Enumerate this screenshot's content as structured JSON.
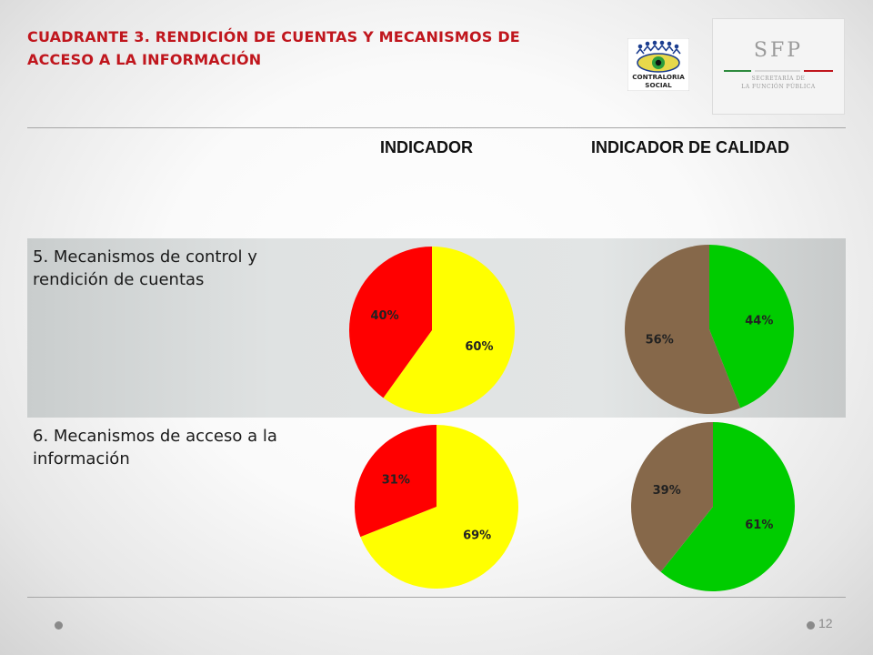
{
  "title": "CUADRANTE 3. RENDICIÓN DE CUENTAS Y MECANISMOS DE ACCESO A LA INFORMACIÓN",
  "logos": {
    "contraloria_line1": "CONTRALORIA",
    "contraloria_line2": "SOCIAL",
    "sfp_name": "SFP",
    "sfp_sub1": "SECRETARÍA DE",
    "sfp_sub2": "LA FUNCIÓN PÚBLICA"
  },
  "table": {
    "headers": [
      "INDICADOR",
      "INDICADOR DE CALIDAD"
    ],
    "rows": [
      {
        "label": "5. Mecanismos de control y rendición de cuentas"
      },
      {
        "label": "6. Mecanismos de acceso a la información"
      }
    ]
  },
  "colors": {
    "red": "#ff0000",
    "yellow": "#ffff00",
    "green": "#00cc00",
    "brown": "#86684a",
    "title": "#c0161d"
  },
  "chart_data": [
    {
      "type": "pie",
      "row": "5. Mecanismos de control y rendición de cuentas",
      "column": "INDICADOR",
      "slices": [
        {
          "value": 60,
          "label": "60%",
          "color": "#ffff00"
        },
        {
          "value": 40,
          "label": "40%",
          "color": "#ff0000"
        }
      ]
    },
    {
      "type": "pie",
      "row": "5. Mecanismos de control y rendición de cuentas",
      "column": "INDICADOR DE CALIDAD",
      "slices": [
        {
          "value": 44,
          "label": "44%",
          "color": "#00cc00"
        },
        {
          "value": 56,
          "label": "56%",
          "color": "#86684a"
        }
      ]
    },
    {
      "type": "pie",
      "row": "6. Mecanismos de acceso a la información",
      "column": "INDICADOR",
      "slices": [
        {
          "value": 69,
          "label": "69%",
          "color": "#ffff00"
        },
        {
          "value": 31,
          "label": "31%",
          "color": "#ff0000"
        }
      ]
    },
    {
      "type": "pie",
      "row": "6. Mecanismos de acceso a la información",
      "column": "INDICADOR DE CALIDAD",
      "slices": [
        {
          "value": 61,
          "label": "61%",
          "color": "#00cc00"
        },
        {
          "value": 39,
          "label": "39%",
          "color": "#86684a"
        }
      ]
    }
  ],
  "page_number": "12"
}
